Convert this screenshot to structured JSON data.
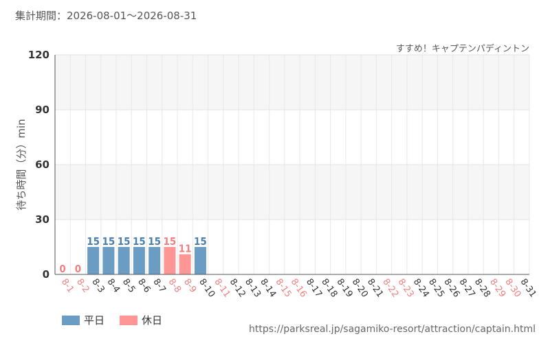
{
  "header": {
    "period_label": "集計期間：2026-08-01～2026-08-31"
  },
  "footer": {
    "source_url": "https://parksreal.jp/sagamiko-resort/attraction/captain.html"
  },
  "colors": {
    "weekday": "#6b9cc4",
    "holiday": "#ff9696",
    "weekday_text": "#4a7fad",
    "holiday_text": "#f08080",
    "weekday_tick": "#333333",
    "holiday_tick": "#f08080"
  },
  "chart_data": {
    "type": "bar",
    "title": "すすめ！キャプテンパディントン",
    "ylabel": "待ち時間（分）min",
    "ylim": [
      0,
      120
    ],
    "yticks": [
      0,
      30,
      60,
      90,
      120
    ],
    "grid": true,
    "legend_position": "bottom-left",
    "legend": [
      {
        "key": "weekday",
        "label": "平日"
      },
      {
        "key": "holiday",
        "label": "休日"
      }
    ],
    "categories": [
      "8-1",
      "8-2",
      "8-3",
      "8-4",
      "8-5",
      "8-6",
      "8-7",
      "8-8",
      "8-9",
      "8-10",
      "8-11",
      "8-12",
      "8-13",
      "8-14",
      "8-15",
      "8-16",
      "8-17",
      "8-18",
      "8-19",
      "8-20",
      "8-21",
      "8-22",
      "8-23",
      "8-24",
      "8-25",
      "8-26",
      "8-27",
      "8-28",
      "8-29",
      "8-30",
      "8-31"
    ],
    "day_types": [
      "holiday",
      "holiday",
      "weekday",
      "weekday",
      "weekday",
      "weekday",
      "weekday",
      "holiday",
      "holiday",
      "weekday",
      "holiday",
      "weekday",
      "weekday",
      "weekday",
      "holiday",
      "holiday",
      "weekday",
      "weekday",
      "weekday",
      "weekday",
      "weekday",
      "holiday",
      "holiday",
      "weekday",
      "weekday",
      "weekday",
      "weekday",
      "weekday",
      "holiday",
      "holiday",
      "weekday"
    ],
    "values": [
      0,
      0,
      15,
      15,
      15,
      15,
      15,
      15,
      11,
      15,
      null,
      null,
      null,
      null,
      null,
      null,
      null,
      null,
      null,
      null,
      null,
      null,
      null,
      null,
      null,
      null,
      null,
      null,
      null,
      null,
      null
    ]
  }
}
